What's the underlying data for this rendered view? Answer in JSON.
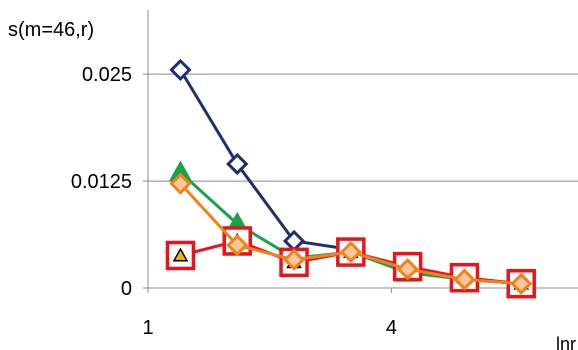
{
  "chart_data": {
    "type": "line",
    "ylabel": "s(m=46,r)",
    "xlabel": "lnr",
    "xlim": [
      1,
      6.3
    ],
    "ylim": [
      0,
      0.0325
    ],
    "x_ticks": [
      1,
      4
    ],
    "x_tick_labels": [
      "1",
      "4"
    ],
    "y_ticks": [
      0,
      0.0125,
      0.025
    ],
    "y_tick_labels": [
      "0",
      "0.0125",
      "0.025"
    ],
    "grid": "horizontal",
    "legend": "none",
    "series": [
      {
        "marker": "diamond",
        "color": "#1f2f6e",
        "fill": "#ffffff",
        "x": [
          1.4,
          2.1,
          2.8,
          3.5
        ],
        "y": [
          0.0255,
          0.0145,
          0.0055,
          0.0045
        ]
      },
      {
        "marker": "triangle",
        "color": "#17a34a",
        "fill": "#17a34a",
        "x": [
          1.4,
          2.1,
          2.8,
          3.5,
          4.2,
          4.9,
          5.6
        ],
        "y": [
          0.0135,
          0.0075,
          0.0035,
          0.0042,
          0.0018,
          0.001,
          0.0005
        ]
      },
      {
        "marker": "square-triangle",
        "color": "#e8141c",
        "fill": "#ffffff",
        "inner_fill": "#e6b800",
        "x": [
          1.4,
          2.1,
          2.8,
          3.5,
          4.2,
          4.9,
          5.6
        ],
        "y": [
          0.0038,
          0.0055,
          0.003,
          0.0042,
          0.0025,
          0.0012,
          0.0005
        ]
      },
      {
        "marker": "diamond",
        "color": "#f0821e",
        "fill": "#f6c79a",
        "x": [
          1.4,
          2.1,
          2.8,
          3.5,
          4.2,
          4.9,
          5.6
        ],
        "y": [
          0.0122,
          0.005,
          0.0033,
          0.0042,
          0.0022,
          0.001,
          0.0005
        ]
      }
    ]
  }
}
